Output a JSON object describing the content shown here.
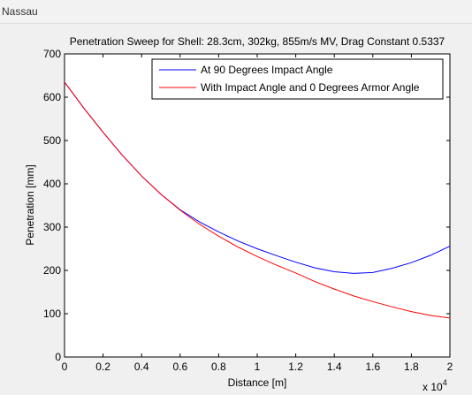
{
  "window": {
    "title": "Nassau"
  },
  "chart_data": {
    "type": "line",
    "title": "Penetration Sweep for Shell: 28.3cm, 302kg, 855m/s MV, Drag Constant 0.5337",
    "xlabel": "Distance [m]",
    "ylabel": "Penetration [mm]",
    "x_exponent_label": "x 10",
    "x_exponent_power": "4",
    "xlim": [
      0,
      20000
    ],
    "ylim": [
      0,
      700
    ],
    "x_ticks": [
      0,
      2000,
      4000,
      6000,
      8000,
      10000,
      12000,
      14000,
      16000,
      18000,
      20000
    ],
    "x_tick_labels": [
      "0",
      "0.2",
      "0.4",
      "0.6",
      "0.8",
      "1",
      "1.2",
      "1.4",
      "1.6",
      "1.8",
      "2"
    ],
    "y_ticks": [
      0,
      100,
      200,
      300,
      400,
      500,
      600,
      700
    ],
    "y_tick_labels": [
      "0",
      "100",
      "200",
      "300",
      "400",
      "500",
      "600",
      "700"
    ],
    "grid": false,
    "legend_position": "top-right",
    "x": [
      0,
      1000,
      2000,
      3000,
      4000,
      5000,
      6000,
      7000,
      8000,
      9000,
      10000,
      11000,
      12000,
      13000,
      14000,
      15000,
      16000,
      17000,
      18000,
      19000,
      20000
    ],
    "series": [
      {
        "name": "At 90 Degrees Impact Angle",
        "color": "#0000ff",
        "values": [
          635,
          575,
          519,
          466,
          418,
          376,
          340,
          312,
          289,
          268,
          250,
          234,
          219,
          206,
          197,
          193,
          195,
          205,
          218,
          235,
          256
        ]
      },
      {
        "name": "With Impact Angle and 0 Degrees Armor Angle",
        "color": "#ff0000",
        "values": [
          635,
          575,
          519,
          466,
          418,
          376,
          339,
          307,
          279,
          254,
          232,
          212,
          194,
          174,
          157,
          141,
          128,
          116,
          105,
          96,
          90
        ]
      }
    ]
  }
}
